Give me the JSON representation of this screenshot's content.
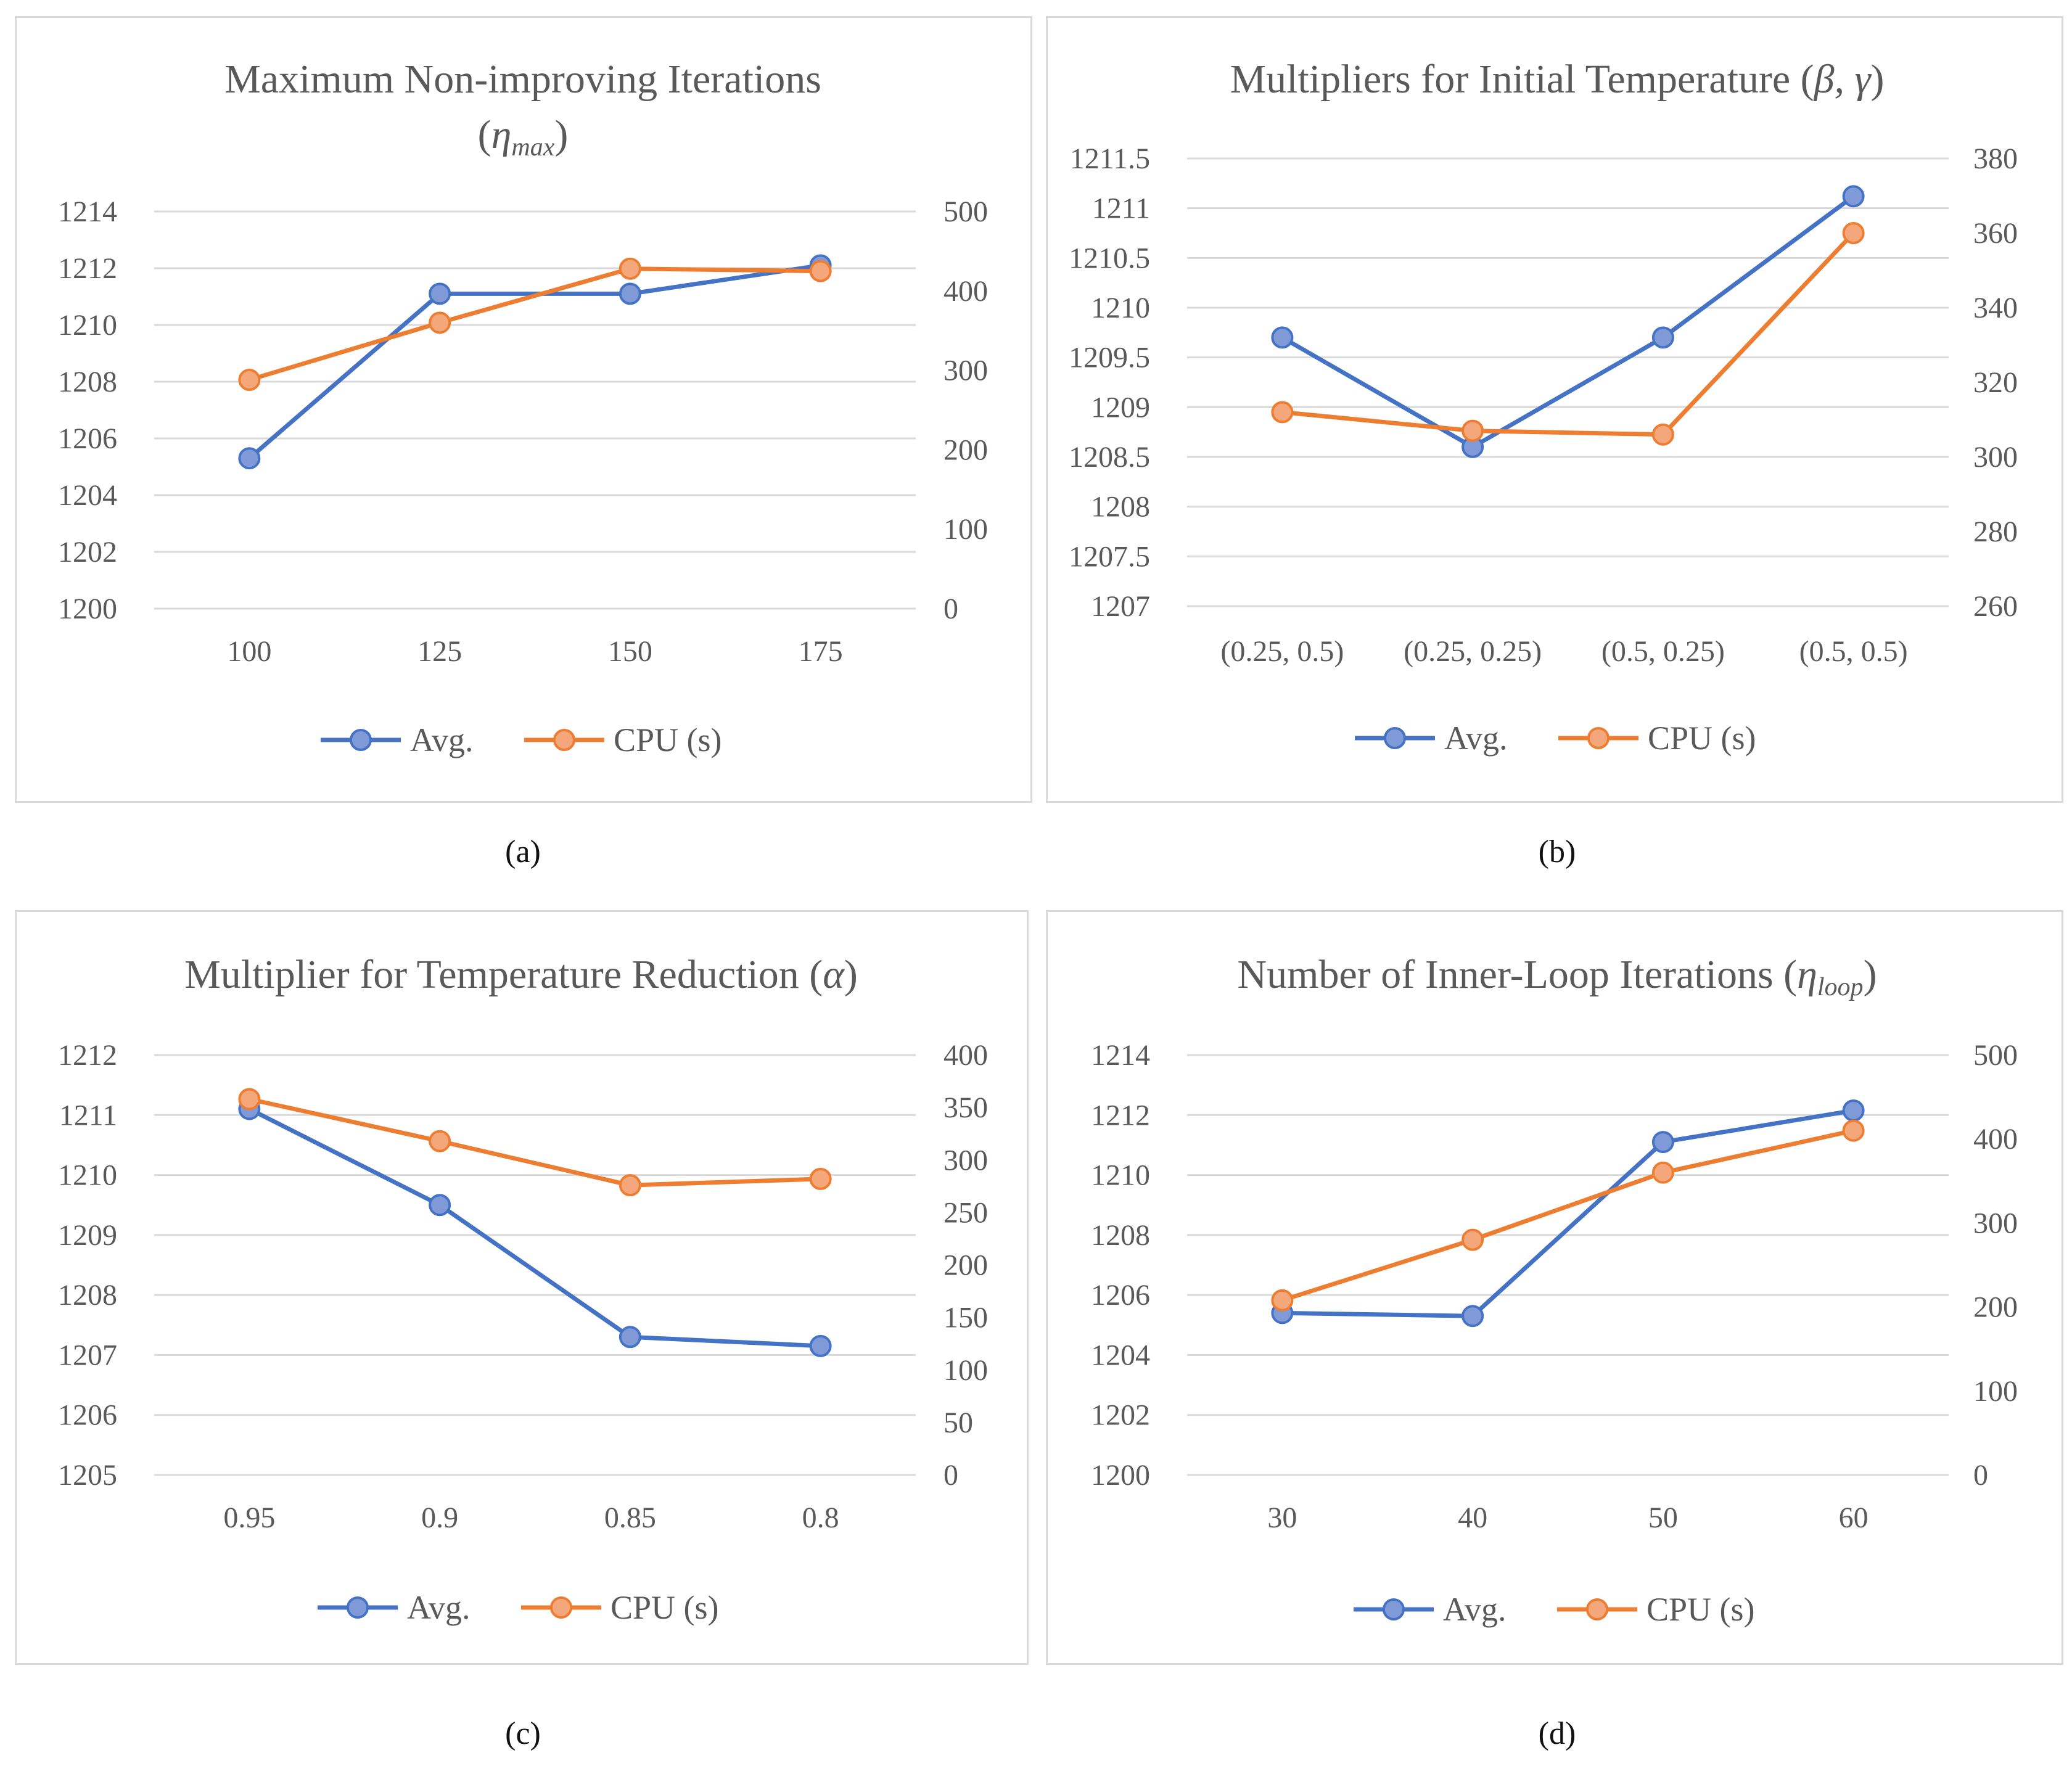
{
  "colors": {
    "avg": "#4472C4",
    "avg_fill": "#7f9ad6",
    "cpu": "#ED7D31",
    "cpu_fill": "#F4A77A",
    "grid": "#d9d9d9",
    "text": "#595959"
  },
  "captions": [
    "(a)",
    "(b)",
    "(c)",
    "(d)"
  ],
  "chart_data": [
    {
      "type": "line",
      "title": "Maximum Non-improving Iterations",
      "title_line2_open": "(",
      "title_symbol": "η",
      "title_subscript": "max",
      "title_line2_close": ")",
      "categories": [
        "100",
        "125",
        "150",
        "175"
      ],
      "ylim_left": [
        1200,
        1214
      ],
      "yticks_left": [
        1200,
        1202,
        1204,
        1206,
        1208,
        1210,
        1212,
        1214
      ],
      "ylim_right": [
        0,
        500
      ],
      "yticks_right": [
        0,
        100,
        200,
        300,
        400,
        500
      ],
      "legend": [
        "Avg.",
        "CPU (s)"
      ],
      "series": [
        {
          "name": "Avg.",
          "axis": "left",
          "values": [
            1205.3,
            1211.1,
            1211.1,
            1212.1
          ]
        },
        {
          "name": "CPU (s)",
          "axis": "right",
          "values": [
            288,
            360,
            428,
            425
          ]
        }
      ],
      "caption": "(a)"
    },
    {
      "type": "line",
      "title": "Multipliers for Initial Temperature (",
      "title_symbol": "β, γ",
      "title_close": ")",
      "categories": [
        "(0.25, 0.5)",
        "(0.25, 0.25)",
        "(0.5, 0.25)",
        "(0.5, 0.5)"
      ],
      "ylim_left": [
        1207,
        1211.5
      ],
      "yticks_left": [
        1207,
        1207.5,
        1208,
        1208.5,
        1209,
        1209.5,
        1210,
        1210.5,
        1211,
        1211.5
      ],
      "ylim_right": [
        260,
        380
      ],
      "yticks_right": [
        260,
        280,
        300,
        320,
        340,
        360,
        380
      ],
      "legend": [
        "Avg.",
        "CPU (s)"
      ],
      "series": [
        {
          "name": "Avg.",
          "axis": "left",
          "values": [
            1209.7,
            1208.6,
            1209.7,
            1211.12
          ]
        },
        {
          "name": "CPU (s)",
          "axis": "right",
          "values": [
            312,
            307,
            306,
            360
          ]
        }
      ],
      "caption": "(b)"
    },
    {
      "type": "line",
      "title": "Multiplier for Temperature Reduction (",
      "title_symbol": "α",
      "title_close": ")",
      "categories": [
        "0.95",
        "0.9",
        "0.85",
        "0.8"
      ],
      "ylim_left": [
        1205,
        1212
      ],
      "yticks_left": [
        1205,
        1206,
        1207,
        1208,
        1209,
        1210,
        1211,
        1212
      ],
      "ylim_right": [
        0,
        400
      ],
      "yticks_right": [
        0,
        50,
        100,
        150,
        200,
        250,
        300,
        350,
        400
      ],
      "legend": [
        "Avg.",
        "CPU (s)"
      ],
      "series": [
        {
          "name": "Avg.",
          "axis": "left",
          "values": [
            1211.1,
            1209.5,
            1207.3,
            1207.15
          ]
        },
        {
          "name": "CPU (s)",
          "axis": "right",
          "values": [
            358,
            318,
            276,
            282
          ]
        }
      ],
      "caption": "(c)"
    },
    {
      "type": "line",
      "title": "Number of Inner-Loop Iterations (",
      "title_symbol": "η",
      "title_subscript": "loop",
      "title_close": ")",
      "categories": [
        "30",
        "40",
        "50",
        "60"
      ],
      "ylim_left": [
        1200,
        1214
      ],
      "yticks_left": [
        1200,
        1202,
        1204,
        1206,
        1208,
        1210,
        1212,
        1214
      ],
      "ylim_right": [
        0,
        500
      ],
      "yticks_right": [
        0,
        100,
        200,
        300,
        400,
        500
      ],
      "legend": [
        "Avg.",
        "CPU (s)"
      ],
      "series": [
        {
          "name": "Avg.",
          "axis": "left",
          "values": [
            1205.4,
            1205.3,
            1211.1,
            1212.15
          ]
        },
        {
          "name": "CPU (s)",
          "axis": "right",
          "values": [
            208,
            280,
            360,
            410
          ]
        }
      ],
      "caption": "(d)"
    }
  ]
}
